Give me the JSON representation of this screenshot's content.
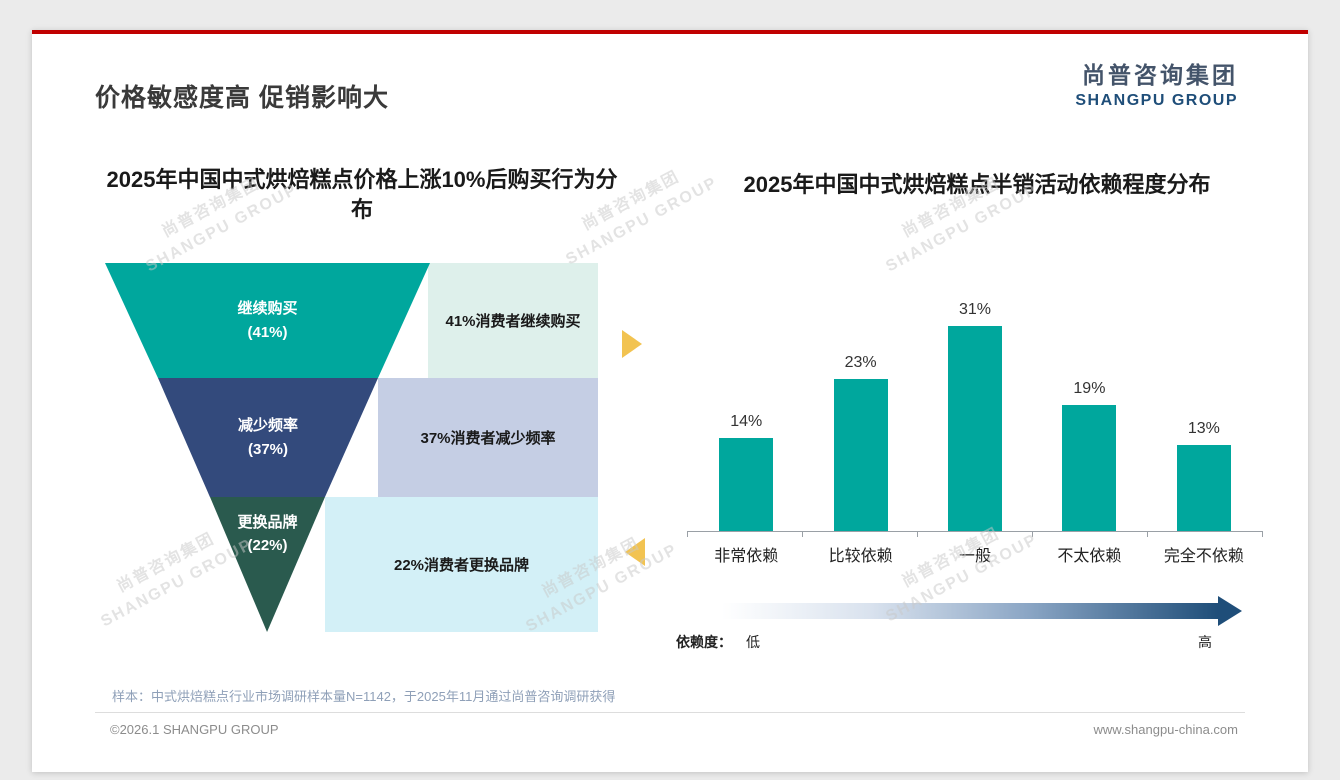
{
  "colors": {
    "accent_red": "#C00000",
    "brand_blue": "#1F4E79",
    "teal": "#00A79D",
    "funnel_navy": "#334A7C",
    "funnel_dark_green": "#2A5A4E",
    "desc_bg_teal": "#DEF0EB",
    "desc_bg_periwinkle": "#C5CEE4",
    "desc_bg_cyan": "#D3F0F7",
    "arrow_yellow": "#F2C351"
  },
  "header": {
    "title": "价格敏感度高 促销影响大",
    "logo_cn": "尚普咨询集团",
    "logo_en": "SHANGPU GROUP"
  },
  "watermark": {
    "cn": "尚普咨询集团",
    "en": "SHANGPU GROUP"
  },
  "chart_data": [
    {
      "type": "funnel",
      "title": "2025年中国中式烘焙糕点价格上涨10%后购买行为分布",
      "categories": [
        "继续购买",
        "减少频率",
        "更换品牌"
      ],
      "values": [
        41,
        37,
        22
      ],
      "unit": "%",
      "display_values": [
        "(41%)",
        "(37%)",
        "(22%)"
      ],
      "annotations": [
        "41%消费者继续购买",
        "37%消费者减少频率",
        "22%消费者更换品牌"
      ]
    },
    {
      "type": "bar",
      "title": "2025年中国中式烘焙糕点半销活动依赖程度分布",
      "categories": [
        "非常依赖",
        "比较依赖",
        "一般",
        "不太依赖",
        "完全不依赖"
      ],
      "values": [
        14,
        23,
        31,
        19,
        13
      ],
      "unit": "%",
      "ylim": [
        0,
        35
      ],
      "value_labels": [
        "14%",
        "23%",
        "31%",
        "19%",
        "13%"
      ],
      "bar_color": "#00A79D",
      "axis_annotation": {
        "label": "依赖度：",
        "low": "低",
        "high": "高"
      }
    }
  ],
  "footnote": "样本：中式烘焙糕点行业市场调研样本量N=1142，于2025年11月通过尚普咨询调研获得",
  "footer": {
    "left": "©2026.1 SHANGPU GROUP",
    "right": "www.shangpu-china.com"
  }
}
